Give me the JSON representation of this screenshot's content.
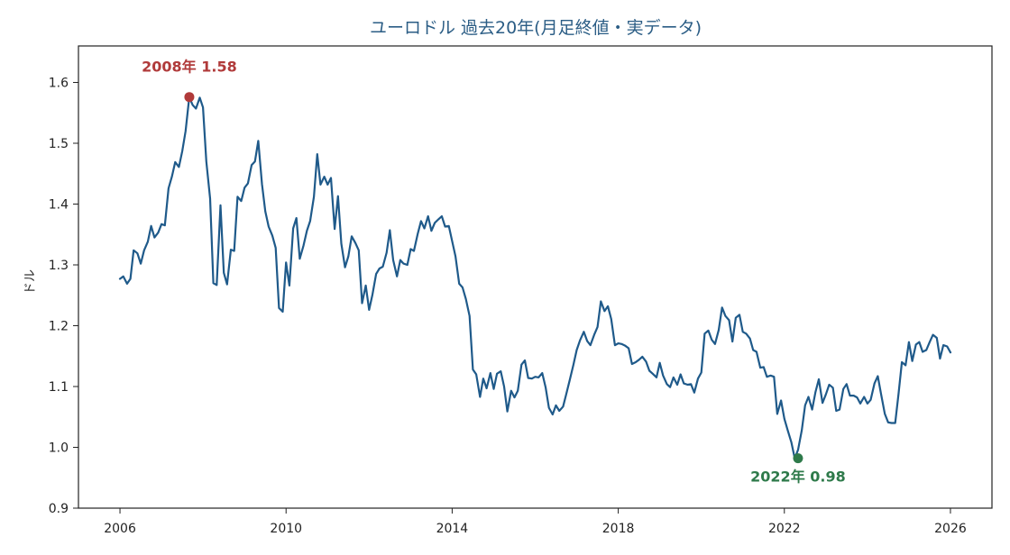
{
  "chart_data": {
    "type": "line",
    "title": "ユーロドル 過去20年(月足終値・実データ)",
    "xlabel": "",
    "ylabel": "ドル",
    "xlim": [
      2005.0,
      2027.0
    ],
    "ylim": [
      0.9,
      1.66
    ],
    "x_ticks": [
      2006,
      2010,
      2014,
      2018,
      2022,
      2026
    ],
    "y_ticks": [
      0.9,
      1.0,
      1.1,
      1.2,
      1.3,
      1.4,
      1.5,
      1.6
    ],
    "grid": false,
    "colors": {
      "line": "#1f5a8a",
      "title": "#2b5d85",
      "high": "#b03a3a",
      "low": "#2e7a4a"
    },
    "series": [
      {
        "x": [
          2006.0,
          2006.08,
          2006.17,
          2006.25,
          2006.33,
          2006.42,
          2006.5,
          2006.58,
          2006.67,
          2006.75,
          2006.83,
          2006.92,
          2007.0,
          2007.08,
          2007.17,
          2007.25,
          2007.33,
          2007.42,
          2007.5,
          2007.58,
          2007.67,
          2007.75,
          2007.83,
          2007.92,
          2008.0,
          2008.08,
          2008.17,
          2008.25,
          2008.33,
          2008.42,
          2008.5,
          2008.58,
          2008.67,
          2008.75,
          2008.83,
          2008.92,
          2009.0,
          2009.08,
          2009.17,
          2009.25,
          2009.33,
          2009.42,
          2009.5,
          2009.58,
          2009.67,
          2009.75,
          2009.83,
          2009.92,
          2010.0,
          2010.08,
          2010.17,
          2010.25,
          2010.33,
          2010.42,
          2010.5,
          2010.58,
          2010.67,
          2010.75,
          2010.83,
          2010.92,
          2011.0,
          2011.08,
          2011.17,
          2011.25,
          2011.33,
          2011.42,
          2011.5,
          2011.58,
          2011.67,
          2011.75,
          2011.83,
          2011.92,
          2012.0,
          2012.08,
          2012.17,
          2012.25,
          2012.33,
          2012.42,
          2012.5,
          2012.58,
          2012.67,
          2012.75,
          2012.83,
          2012.92,
          2013.0,
          2013.08,
          2013.17,
          2013.25,
          2013.33,
          2013.42,
          2013.5,
          2013.58,
          2013.67,
          2013.75,
          2013.83,
          2013.92,
          2014.0,
          2014.08,
          2014.17,
          2014.25,
          2014.33,
          2014.42,
          2014.5,
          2014.58,
          2014.67,
          2014.75,
          2014.83,
          2014.92,
          2015.0,
          2015.08,
          2015.17,
          2015.25,
          2015.33,
          2015.42,
          2015.5,
          2015.58,
          2015.67,
          2015.75,
          2015.83,
          2015.92,
          2016.0,
          2016.08,
          2016.17,
          2016.25,
          2016.33,
          2016.42,
          2016.5,
          2016.58,
          2016.67,
          2016.75,
          2016.83,
          2016.92,
          2017.0,
          2017.08,
          2017.17,
          2017.25,
          2017.33,
          2017.42,
          2017.5,
          2017.58,
          2017.67,
          2017.75,
          2017.83,
          2017.92,
          2018.0,
          2018.08,
          2018.17,
          2018.25,
          2018.33,
          2018.42,
          2018.5,
          2018.58,
          2018.67,
          2018.75,
          2018.83,
          2018.92,
          2019.0,
          2019.08,
          2019.17,
          2019.25,
          2019.33,
          2019.42,
          2019.5,
          2019.58,
          2019.67,
          2019.75,
          2019.83,
          2019.92,
          2020.0,
          2020.08,
          2020.17,
          2020.25,
          2020.33,
          2020.42,
          2020.5,
          2020.58,
          2020.67,
          2020.75,
          2020.83,
          2020.92,
          2021.0,
          2021.08,
          2021.17,
          2021.25,
          2021.33,
          2021.42,
          2021.5,
          2021.58,
          2021.67,
          2021.75,
          2021.83,
          2021.92,
          2022.0,
          2022.08,
          2022.17,
          2022.25,
          2022.33,
          2022.42,
          2022.5,
          2022.58,
          2022.67,
          2022.75,
          2022.83,
          2022.92,
          2023.0,
          2023.08,
          2023.17,
          2023.25,
          2023.33,
          2023.42,
          2023.5,
          2023.58,
          2023.67,
          2023.75,
          2023.83,
          2023.92,
          2024.0,
          2024.08,
          2024.17,
          2024.25,
          2024.33,
          2024.42,
          2024.5,
          2024.58,
          2024.67,
          2024.75,
          2024.83,
          2024.92,
          2025.0,
          2025.08,
          2025.17,
          2025.25,
          2025.33,
          2025.42,
          2025.5,
          2025.58,
          2025.67,
          2025.75,
          2025.83,
          2025.92,
          2026.0
        ],
        "values": [
          1.277,
          1.281,
          1.269,
          1.277,
          1.324,
          1.319,
          1.302,
          1.324,
          1.338,
          1.364,
          1.345,
          1.353,
          1.367,
          1.365,
          1.426,
          1.445,
          1.469,
          1.461,
          1.487,
          1.52,
          1.576,
          1.563,
          1.557,
          1.575,
          1.559,
          1.47,
          1.409,
          1.27,
          1.267,
          1.398,
          1.287,
          1.268,
          1.325,
          1.323,
          1.412,
          1.405,
          1.427,
          1.434,
          1.464,
          1.47,
          1.504,
          1.433,
          1.388,
          1.363,
          1.348,
          1.328,
          1.229,
          1.223,
          1.304,
          1.266,
          1.36,
          1.377,
          1.31,
          1.332,
          1.356,
          1.372,
          1.412,
          1.482,
          1.432,
          1.445,
          1.432,
          1.443,
          1.359,
          1.413,
          1.335,
          1.296,
          1.314,
          1.347,
          1.336,
          1.324,
          1.237,
          1.266,
          1.226,
          1.251,
          1.285,
          1.294,
          1.297,
          1.32,
          1.357,
          1.308,
          1.281,
          1.308,
          1.302,
          1.3,
          1.326,
          1.323,
          1.351,
          1.372,
          1.36,
          1.38,
          1.356,
          1.369,
          1.375,
          1.38,
          1.363,
          1.364,
          1.339,
          1.314,
          1.269,
          1.263,
          1.244,
          1.216,
          1.128,
          1.12,
          1.083,
          1.113,
          1.097,
          1.122,
          1.096,
          1.121,
          1.125,
          1.1,
          1.059,
          1.093,
          1.082,
          1.093,
          1.136,
          1.143,
          1.114,
          1.113,
          1.116,
          1.115,
          1.122,
          1.099,
          1.065,
          1.054,
          1.069,
          1.06,
          1.067,
          1.088,
          1.11,
          1.136,
          1.16,
          1.176,
          1.19,
          1.175,
          1.168,
          1.185,
          1.198,
          1.24,
          1.224,
          1.232,
          1.211,
          1.168,
          1.171,
          1.17,
          1.167,
          1.163,
          1.137,
          1.14,
          1.144,
          1.149,
          1.141,
          1.126,
          1.121,
          1.115,
          1.139,
          1.118,
          1.104,
          1.099,
          1.115,
          1.103,
          1.12,
          1.105,
          1.103,
          1.104,
          1.09,
          1.113,
          1.123,
          1.187,
          1.192,
          1.177,
          1.17,
          1.193,
          1.23,
          1.216,
          1.209,
          1.174,
          1.213,
          1.218,
          1.19,
          1.187,
          1.179,
          1.16,
          1.157,
          1.131,
          1.132,
          1.116,
          1.118,
          1.116,
          1.055,
          1.077,
          1.047,
          1.028,
          1.008,
          0.982,
          0.996,
          1.028,
          1.069,
          1.083,
          1.062,
          1.091,
          1.112,
          1.073,
          1.087,
          1.103,
          1.098,
          1.06,
          1.062,
          1.096,
          1.104,
          1.085,
          1.085,
          1.082,
          1.072,
          1.083,
          1.072,
          1.078,
          1.105,
          1.117,
          1.087,
          1.055,
          1.041,
          1.04,
          1.04,
          1.088,
          1.14,
          1.135,
          1.173,
          1.142,
          1.169,
          1.173,
          1.157,
          1.16,
          1.173,
          1.185,
          1.18,
          1.146,
          1.168,
          1.166,
          1.156
        ]
      }
    ],
    "annotations": [
      {
        "text": "2008年 1.58",
        "x": 2007.67,
        "y": 1.576,
        "kind": "high"
      },
      {
        "text": "2022年 0.98",
        "x": 2022.33,
        "y": 0.982,
        "kind": "low"
      }
    ]
  }
}
